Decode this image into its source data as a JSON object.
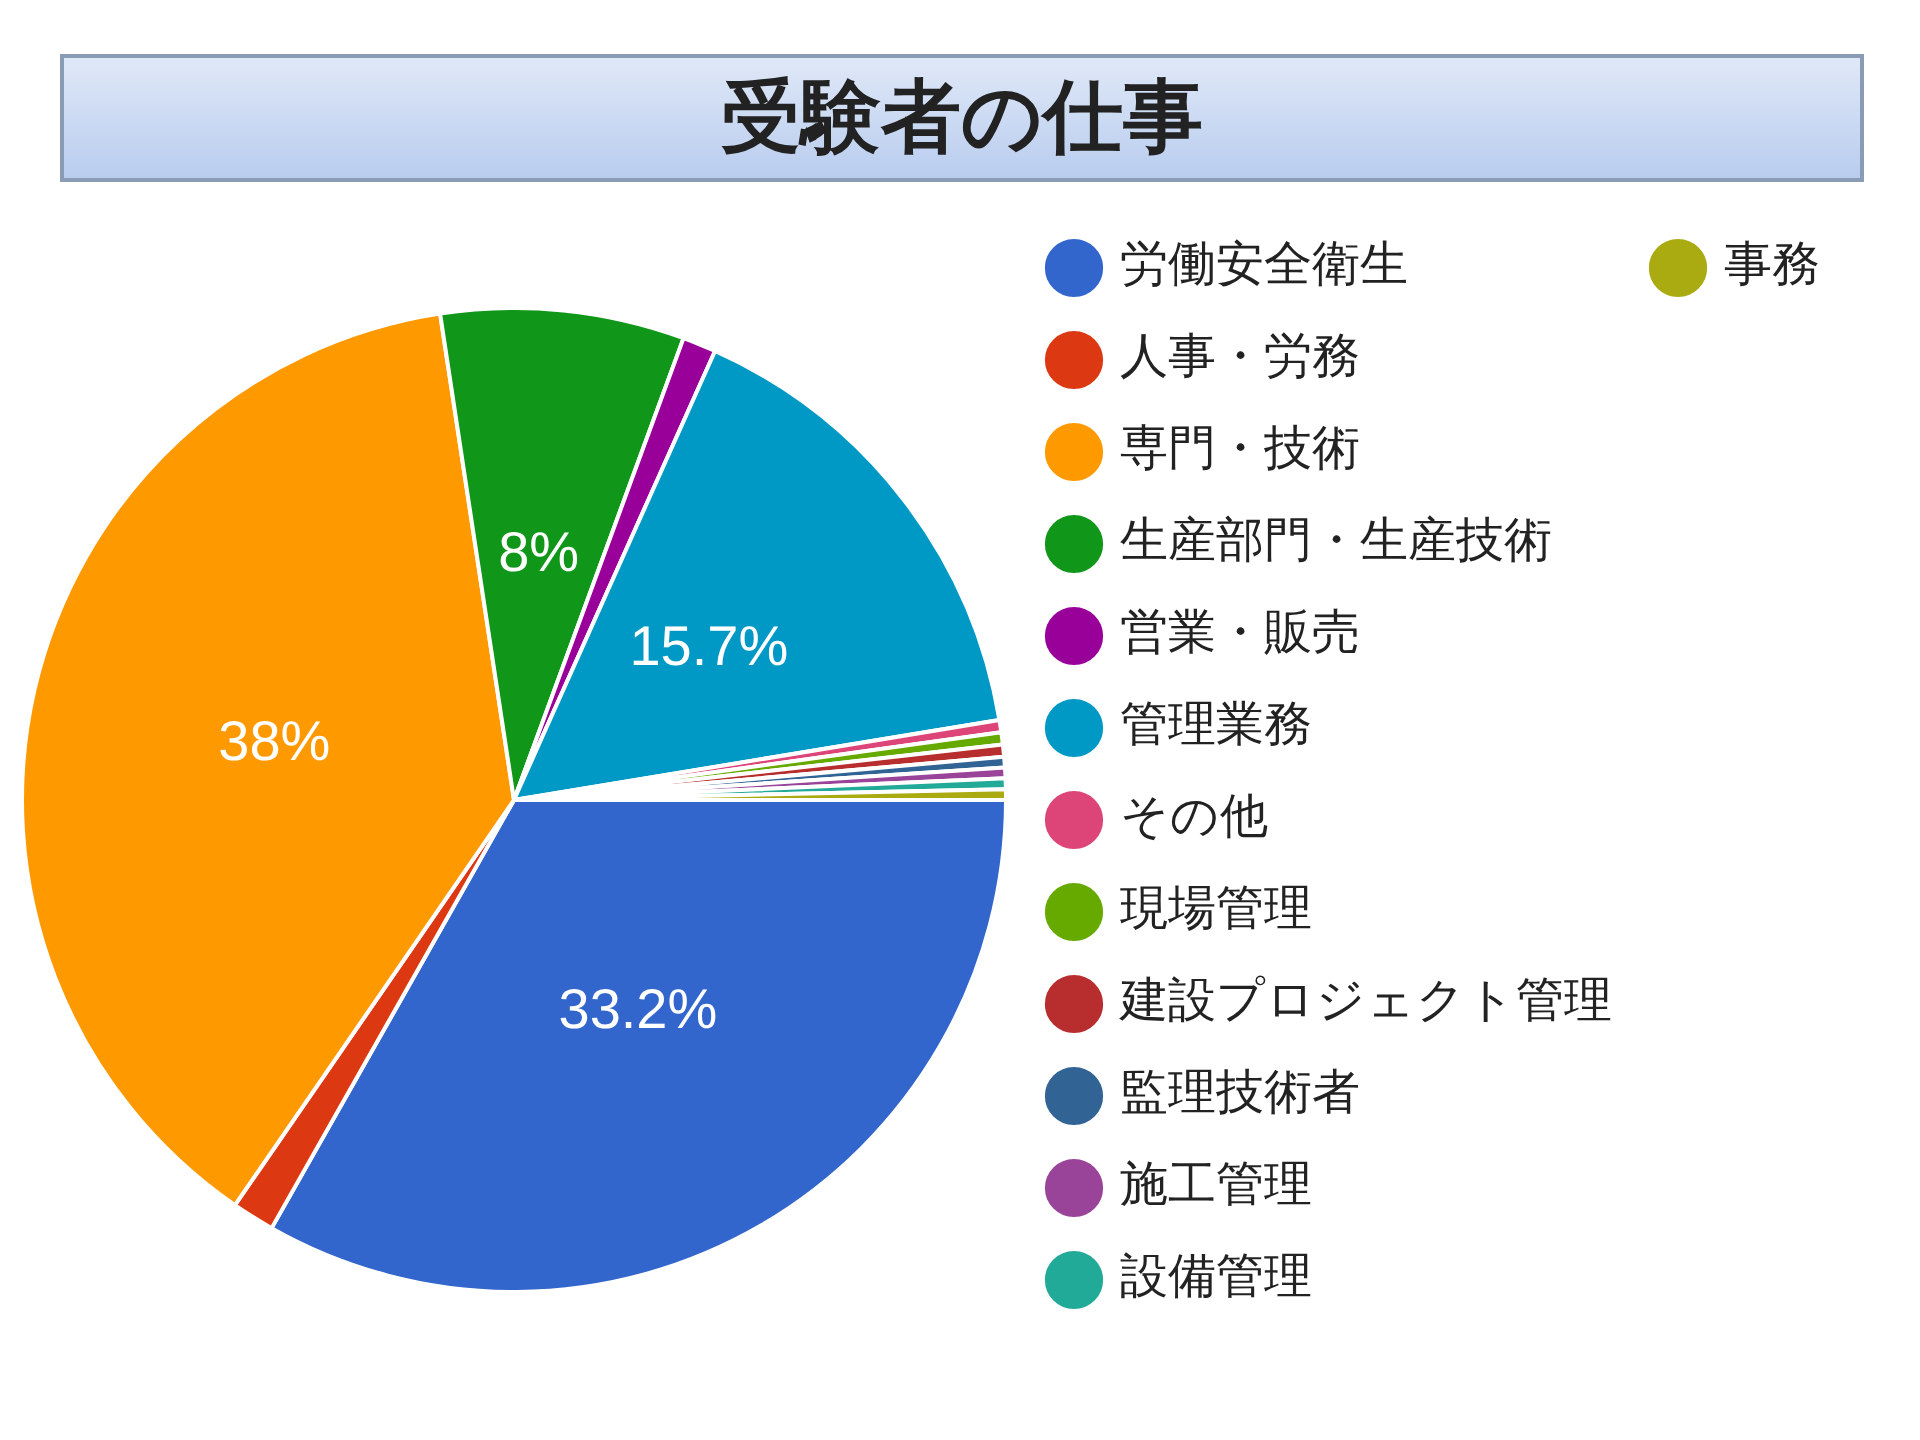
{
  "chart_data": {
    "type": "pie",
    "title": "受験者の仕事",
    "categories": [
      "労働安全衛生",
      "人事・労務",
      "専門・技術",
      "生産部門・生産技術",
      "営業・販売",
      "管理業務",
      "その他",
      "現場管理",
      "建設プロジェクト管理",
      "監理技術者",
      "施工管理",
      "設備管理",
      "事務"
    ],
    "values": [
      33.2,
      1.4,
      38,
      8,
      1.1,
      15.7,
      0.4,
      0.4,
      0.4,
      0.35,
      0.35,
      0.35,
      0.35
    ],
    "value_labels": [
      "33.2%",
      null,
      "38%",
      "8%",
      null,
      "15.7%",
      null,
      null,
      null,
      null,
      null,
      null,
      null
    ],
    "colors": [
      "#3366cc",
      "#dc3912",
      "#ff9900",
      "#109618",
      "#990099",
      "#0099c6",
      "#dd4477",
      "#66aa00",
      "#b82e2e",
      "#316395",
      "#994499",
      "#22aa99",
      "#aaaa11"
    ],
    "legend": "right"
  }
}
